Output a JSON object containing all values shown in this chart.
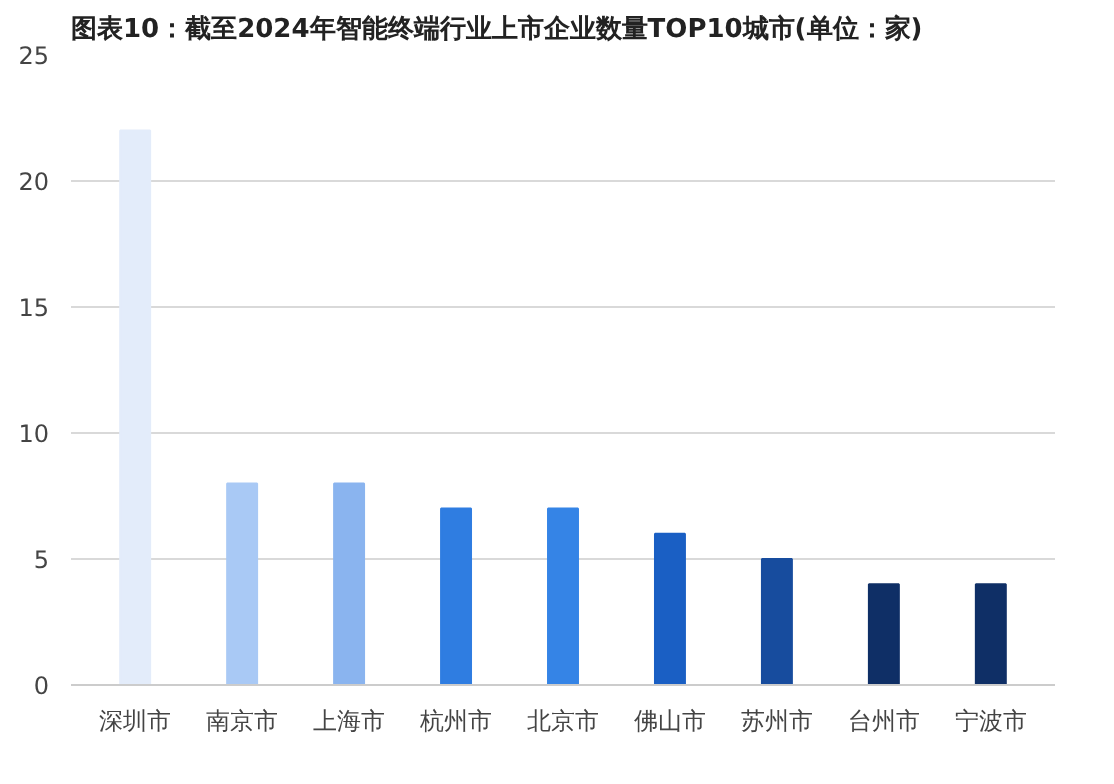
{
  "chart_data": {
    "type": "bar",
    "title": "图表10：截至2024年智能终端行业上市企业数量TOP10城市(单位：家)",
    "categories": [
      "深圳市",
      "南京市",
      "上海市",
      "杭州市",
      "北京市",
      "佛山市",
      "苏州市",
      "台州市",
      "宁波市"
    ],
    "values": [
      22,
      8,
      8,
      7,
      7,
      6,
      5,
      4,
      4
    ],
    "colors": [
      "#e3ecfa",
      "#a9c9f5",
      "#8ab4ef",
      "#2f7de1",
      "#3584e6",
      "#1a5fc4",
      "#174c9e",
      "#0f2f66",
      "#0f2f66"
    ],
    "ylim": [
      0,
      25
    ],
    "yticks": [
      0,
      5,
      10,
      15,
      20,
      25
    ],
    "grid": "y"
  }
}
